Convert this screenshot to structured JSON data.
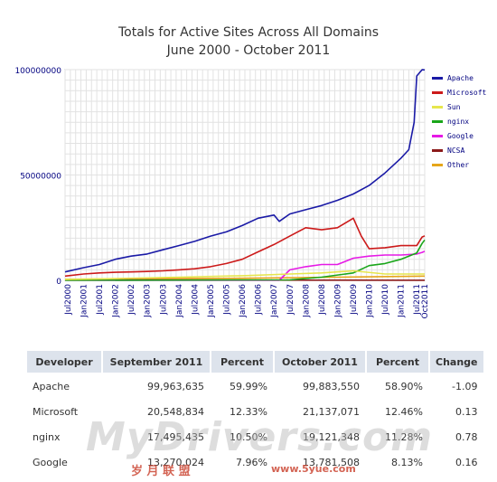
{
  "chart_data": {
    "type": "line",
    "title": "Totals for Active Sites Across All Domains",
    "subtitle": "June 2000 - October 2011",
    "x_tick_labels": [
      "Jul2000",
      "Jan2001",
      "Jul2001",
      "Jan2002",
      "Jul2002",
      "Jan2003",
      "Jul2003",
      "Jan2004",
      "Jul2004",
      "Jan2005",
      "Jul2005",
      "Jan2006",
      "Jul2006",
      "Jan2007",
      "Jul2007",
      "Jan2008",
      "Jul2008",
      "Jan2009",
      "Jul2009",
      "Jan2010",
      "Jul2010",
      "Jan2011",
      "Jul2011",
      "Oct2011"
    ],
    "y_tick_labels": [
      "100000000",
      "50000000",
      "0"
    ],
    "ylim": [
      0,
      100000000
    ],
    "grid": true,
    "legend_position": "right",
    "series": [
      {
        "name": "Apache",
        "color": "#1a1aa6",
        "points": [
          [
            "2000-06",
            4000000
          ],
          [
            "2001-01",
            6000000
          ],
          [
            "2001-07",
            7500000
          ],
          [
            "2002-01",
            10000000
          ],
          [
            "2002-07",
            11500000
          ],
          [
            "2003-01",
            12500000
          ],
          [
            "2003-07",
            14500000
          ],
          [
            "2004-01",
            16500000
          ],
          [
            "2004-07",
            18500000
          ],
          [
            "2005-01",
            21000000
          ],
          [
            "2005-07",
            23000000
          ],
          [
            "2006-01",
            26000000
          ],
          [
            "2006-07",
            29500000
          ],
          [
            "2007-01",
            31000000
          ],
          [
            "2007-03",
            28000000
          ],
          [
            "2007-07",
            31500000
          ],
          [
            "2008-01",
            33500000
          ],
          [
            "2008-07",
            35500000
          ],
          [
            "2009-01",
            38000000
          ],
          [
            "2009-07",
            41000000
          ],
          [
            "2010-01",
            45000000
          ],
          [
            "2010-07",
            51000000
          ],
          [
            "2011-01",
            58000000
          ],
          [
            "2011-04",
            62000000
          ],
          [
            "2011-06",
            75000000
          ],
          [
            "2011-07",
            97000000
          ],
          [
            "2011-09",
            99963635
          ],
          [
            "2011-10",
            99883550
          ]
        ]
      },
      {
        "name": "Microsoft",
        "color": "#cc1a1a",
        "points": [
          [
            "2000-06",
            2000000
          ],
          [
            "2001-01",
            3000000
          ],
          [
            "2001-07",
            3500000
          ],
          [
            "2002-01",
            3800000
          ],
          [
            "2002-07",
            4000000
          ],
          [
            "2003-01",
            4200000
          ],
          [
            "2003-07",
            4500000
          ],
          [
            "2004-01",
            5000000
          ],
          [
            "2004-07",
            5500000
          ],
          [
            "2005-01",
            6500000
          ],
          [
            "2005-07",
            8000000
          ],
          [
            "2006-01",
            10000000
          ],
          [
            "2006-07",
            13500000
          ],
          [
            "2007-01",
            17000000
          ],
          [
            "2007-07",
            21000000
          ],
          [
            "2008-01",
            25000000
          ],
          [
            "2008-07",
            24000000
          ],
          [
            "2009-01",
            25000000
          ],
          [
            "2009-07",
            29500000
          ],
          [
            "2009-10",
            21000000
          ],
          [
            "2010-01",
            15000000
          ],
          [
            "2010-07",
            15500000
          ],
          [
            "2011-01",
            16500000
          ],
          [
            "2011-07",
            16500000
          ],
          [
            "2011-09",
            20548834
          ],
          [
            "2011-10",
            21137071
          ]
        ]
      },
      {
        "name": "Sun",
        "color": "#e6e64d",
        "points": [
          [
            "2000-06",
            400000
          ],
          [
            "2002-01",
            800000
          ],
          [
            "2004-01",
            1500000
          ],
          [
            "2006-01",
            2200000
          ],
          [
            "2007-07",
            3000000
          ],
          [
            "2008-07",
            3500000
          ],
          [
            "2009-07",
            4500000
          ],
          [
            "2010-07",
            3000000
          ],
          [
            "2011-01",
            3000000
          ],
          [
            "2011-10",
            3000000
          ]
        ]
      },
      {
        "name": "nginx",
        "color": "#1aa61a",
        "points": [
          [
            "2000-06",
            0
          ],
          [
            "2007-07",
            200000
          ],
          [
            "2008-07",
            1500000
          ],
          [
            "2009-07",
            3500000
          ],
          [
            "2010-01",
            7000000
          ],
          [
            "2010-07",
            8000000
          ],
          [
            "2011-01",
            10000000
          ],
          [
            "2011-07",
            13000000
          ],
          [
            "2011-09",
            17495435
          ],
          [
            "2011-10",
            19121348
          ]
        ]
      },
      {
        "name": "Google",
        "color": "#e61ae6",
        "points": [
          [
            "2000-06",
            0
          ],
          [
            "2007-03",
            0
          ],
          [
            "2007-07",
            5000000
          ],
          [
            "2008-01",
            6500000
          ],
          [
            "2008-07",
            7500000
          ],
          [
            "2009-01",
            7500000
          ],
          [
            "2009-07",
            10500000
          ],
          [
            "2010-01",
            11500000
          ],
          [
            "2010-07",
            12000000
          ],
          [
            "2011-01",
            12000000
          ],
          [
            "2011-07",
            12500000
          ],
          [
            "2011-09",
            13270024
          ],
          [
            "2011-10",
            13781508
          ]
        ]
      },
      {
        "name": "NCSA",
        "color": "#8b1a1a",
        "points": [
          [
            "2000-06",
            300000
          ],
          [
            "2004-01",
            200000
          ],
          [
            "2008-01",
            100000
          ],
          [
            "2011-10",
            50000
          ]
        ]
      },
      {
        "name": "Other",
        "color": "#e6a61a",
        "points": [
          [
            "2000-06",
            500000
          ],
          [
            "2003-01",
            800000
          ],
          [
            "2006-01",
            1000000
          ],
          [
            "2009-01",
            1500000
          ],
          [
            "2011-10",
            2000000
          ]
        ]
      }
    ]
  },
  "table": {
    "headers": [
      "Developer",
      "September 2011",
      "Percent",
      "October 2011",
      "Percent",
      "Change"
    ],
    "rows": [
      [
        "Apache",
        "99,963,635",
        "59.99%",
        "99,883,550",
        "58.90%",
        "-1.09"
      ],
      [
        "Microsoft",
        "20,548,834",
        "12.33%",
        "21,137,071",
        "12.46%",
        "0.13"
      ],
      [
        "nginx",
        "17,495,435",
        "10.50%",
        "19,121,348",
        "11.28%",
        "0.78"
      ],
      [
        "Google",
        "13,270,024",
        "7.96%",
        "13,781,508",
        "8.13%",
        "0.16"
      ]
    ]
  },
  "watermark": {
    "main": "MyDrivers.com",
    "sub": "岁 月 联 盟",
    "url": "www.5yue.com"
  }
}
